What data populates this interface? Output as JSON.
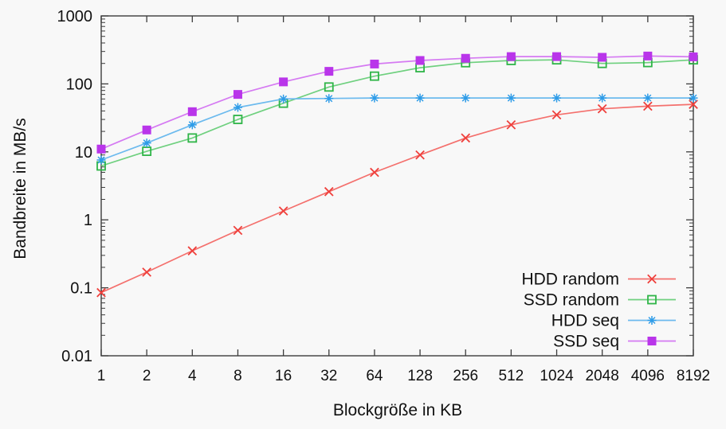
{
  "page": {
    "background": "#f8f8f8",
    "text_color": "#111111",
    "frame_color": "#3c3c3c"
  },
  "chart_data": {
    "type": "line",
    "title": "",
    "xlabel": "Blockgröße in KB",
    "ylabel": "Bandbreite in MB/s",
    "x_scale": "log2",
    "y_scale": "log10",
    "xlim": [
      1,
      8192
    ],
    "ylim": [
      0.01,
      1000
    ],
    "grid": false,
    "legend_position": "inside bottom-right",
    "x": [
      1,
      2,
      4,
      8,
      16,
      32,
      64,
      128,
      256,
      512,
      1024,
      2048,
      4096,
      8192
    ],
    "x_tick_labels": [
      "1",
      "2",
      "4",
      "8",
      "16",
      "32",
      "64",
      "128",
      "256",
      "512",
      "1024",
      "2048",
      "4096",
      "8192"
    ],
    "y_tick_values": [
      1000,
      100,
      10,
      1,
      0.1,
      0.01
    ],
    "y_tick_labels": [
      "1000",
      "100",
      "10",
      "1",
      "0.1",
      "0.01"
    ],
    "series": [
      {
        "name": "HDD random",
        "marker": "cross",
        "color": "#ef403c",
        "line_color": "#f4706d",
        "values": [
          0.085,
          0.17,
          0.35,
          0.7,
          1.35,
          2.6,
          5,
          9,
          16,
          25,
          35,
          43,
          47,
          50
        ]
      },
      {
        "name": "SSD random",
        "marker": "open-square",
        "color": "#2fb548",
        "line_color": "#6fd07f",
        "values": [
          6.2,
          10.2,
          16,
          30,
          52,
          90,
          130,
          173,
          205,
          221,
          226,
          200,
          206,
          226
        ]
      },
      {
        "name": "HDD seq",
        "marker": "star",
        "color": "#2e9ce8",
        "line_color": "#6cbaee",
        "values": [
          7.6,
          13.5,
          25,
          45,
          60,
          61,
          62,
          62,
          62,
          62,
          62,
          62,
          62,
          62
        ]
      },
      {
        "name": "SSD seq",
        "marker": "filled-square",
        "color": "#b935ea",
        "line_color": "#d57af2",
        "values": [
          11,
          21,
          39,
          70,
          107,
          153,
          196,
          221,
          238,
          252,
          252,
          246,
          257,
          250
        ]
      }
    ]
  }
}
